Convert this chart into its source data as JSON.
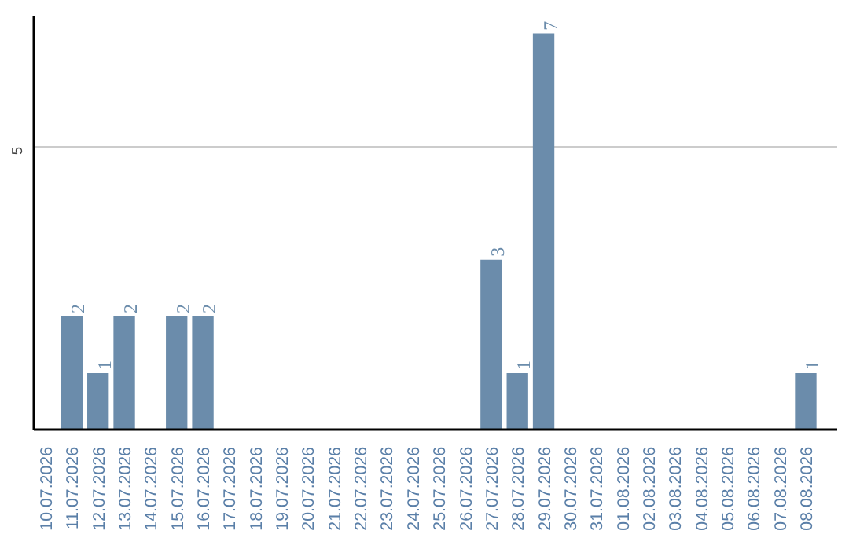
{
  "chart_data": {
    "type": "bar",
    "categories": [
      "10.07.2026",
      "11.07.2026",
      "12.07.2026",
      "13.07.2026",
      "14.07.2026",
      "15.07.2026",
      "16.07.2026",
      "17.07.2026",
      "18.07.2026",
      "19.07.2026",
      "20.07.2026",
      "21.07.2026",
      "22.07.2026",
      "23.07.2026",
      "24.07.2026",
      "25.07.2026",
      "26.07.2026",
      "27.07.2026",
      "28.07.2026",
      "29.07.2026",
      "30.07.2026",
      "31.07.2026",
      "01.08.2026",
      "02.08.2026",
      "03.08.2026",
      "04.08.2026",
      "05.08.2026",
      "06.08.2026",
      "07.08.2026",
      "08.08.2026"
    ],
    "values": [
      0,
      2,
      1,
      2,
      0,
      2,
      2,
      0,
      0,
      0,
      0,
      0,
      0,
      0,
      0,
      0,
      0,
      3,
      1,
      7,
      0,
      0,
      0,
      0,
      0,
      0,
      0,
      0,
      0,
      1
    ],
    "value_labels": [
      null,
      "2",
      "1",
      "2",
      null,
      "2",
      "2",
      null,
      null,
      null,
      null,
      null,
      null,
      null,
      null,
      null,
      null,
      "3",
      "1",
      "7",
      null,
      null,
      null,
      null,
      null,
      null,
      null,
      null,
      null,
      "1"
    ],
    "color": "#6b8cab",
    "ylim": [
      0,
      7.3
    ],
    "yticks": [
      5
    ],
    "grid": "y"
  }
}
